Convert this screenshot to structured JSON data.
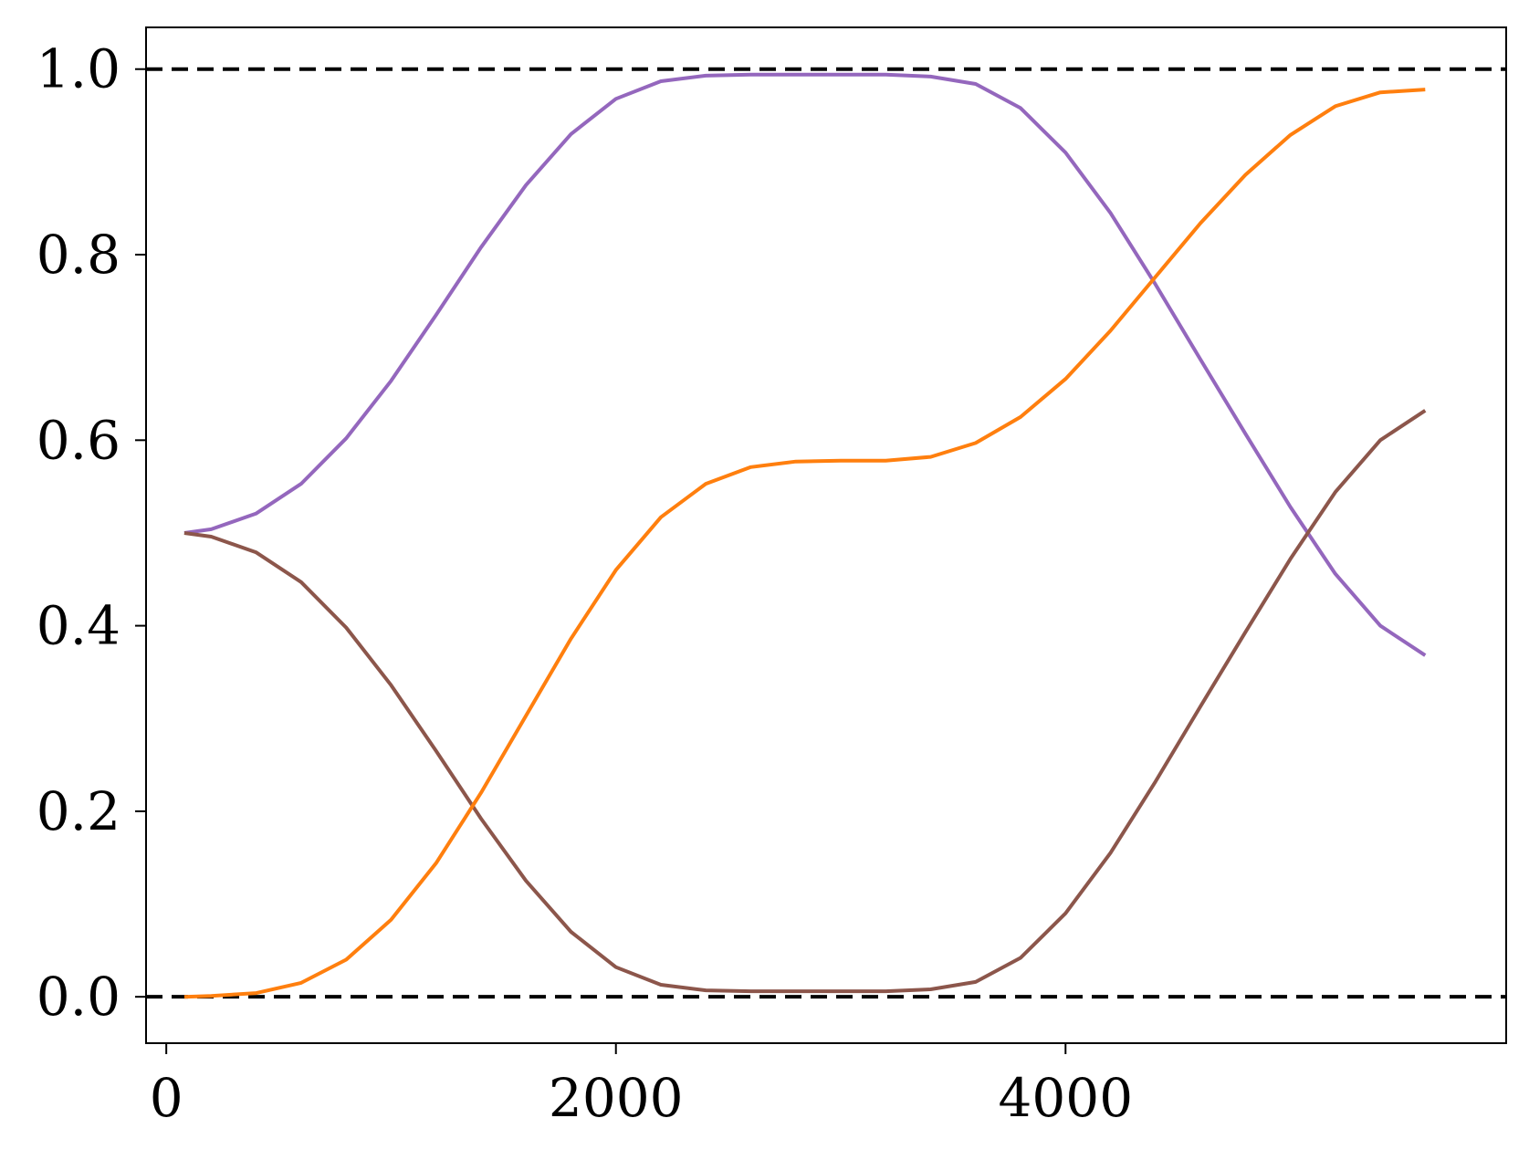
{
  "chart_data": {
    "type": "line",
    "title": "",
    "xlabel": "",
    "ylabel": "",
    "xlim": [
      -90,
      5960
    ],
    "ylim": [
      -0.05,
      1.045
    ],
    "xticks": [
      0,
      2000,
      4000
    ],
    "yticks": [
      0.0,
      0.2,
      0.4,
      0.6,
      0.8,
      1.0
    ],
    "xtick_labels": [
      "0",
      "2000",
      "4000"
    ],
    "ytick_labels": [
      "0.0",
      "0.2",
      "0.4",
      "0.6",
      "0.8",
      "1.0"
    ],
    "grid": false,
    "legend": false,
    "reference_lines": [
      {
        "y": 1.0,
        "style": "dashed",
        "color": "#000000"
      },
      {
        "y": 0.0,
        "style": "dashed",
        "color": "#000000"
      }
    ],
    "x": [
      80,
      200,
      400,
      600,
      800,
      1000,
      1200,
      1400,
      1600,
      1800,
      2000,
      2200,
      2400,
      2600,
      2800,
      3000,
      3200,
      3400,
      3600,
      3800,
      4000,
      4200,
      4400,
      4600,
      4800,
      5000,
      5200,
      5400,
      5600
    ],
    "series": [
      {
        "color": "#9467bd",
        "values": [
          0.5,
          0.504,
          0.521,
          0.553,
          0.602,
          0.664,
          0.735,
          0.808,
          0.875,
          0.93,
          0.968,
          0.987,
          0.993,
          0.994,
          0.994,
          0.994,
          0.994,
          0.992,
          0.984,
          0.958,
          0.91,
          0.845,
          0.768,
          0.687,
          0.607,
          0.528,
          0.456,
          0.4,
          0.368
        ]
      },
      {
        "color": "#8c564b",
        "values": [
          0.5,
          0.496,
          0.479,
          0.447,
          0.398,
          0.336,
          0.265,
          0.192,
          0.125,
          0.07,
          0.032,
          0.013,
          0.007,
          0.006,
          0.006,
          0.006,
          0.006,
          0.008,
          0.016,
          0.042,
          0.09,
          0.155,
          0.232,
          0.313,
          0.393,
          0.472,
          0.544,
          0.6,
          0.632
        ]
      },
      {
        "color": "#ff7f0e",
        "values": [
          0.0,
          0.001,
          0.004,
          0.015,
          0.04,
          0.083,
          0.144,
          0.22,
          0.303,
          0.386,
          0.46,
          0.517,
          0.553,
          0.571,
          0.577,
          0.578,
          0.578,
          0.582,
          0.597,
          0.625,
          0.666,
          0.718,
          0.776,
          0.834,
          0.886,
          0.929,
          0.96,
          0.975,
          0.978
        ]
      }
    ]
  }
}
